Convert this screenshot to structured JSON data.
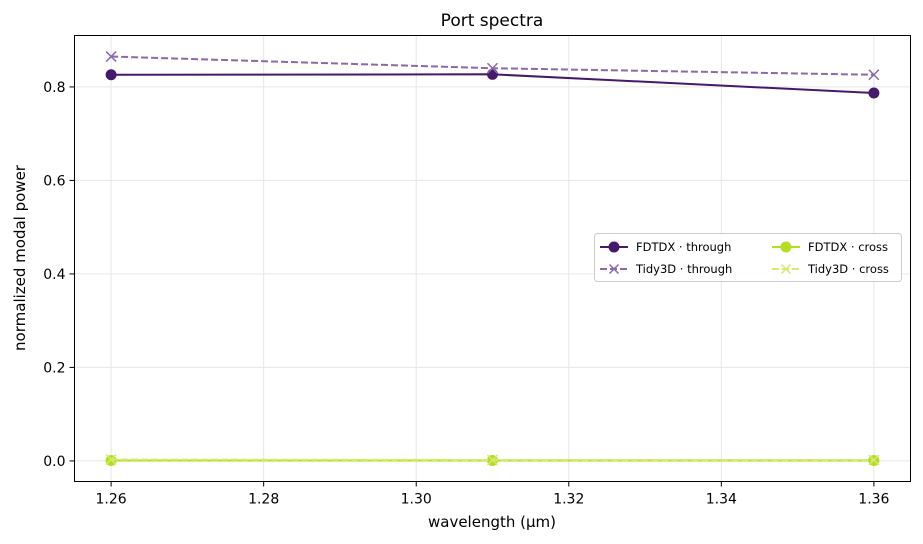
{
  "chart_data": {
    "type": "line",
    "title": "Port spectra",
    "xlabel": "wavelength (µm)",
    "ylabel": "normalized modal power",
    "xlim": [
      1.2552,
      1.3648
    ],
    "ylim": [
      -0.044,
      0.91
    ],
    "xticks": [
      1.26,
      1.28,
      1.3,
      1.32,
      1.34,
      1.36
    ],
    "xtick_labels": [
      "1.26",
      "1.28",
      "1.30",
      "1.32",
      "1.34",
      "1.36"
    ],
    "yticks": [
      0.0,
      0.2,
      0.4,
      0.6,
      0.8
    ],
    "ytick_labels": [
      "0.0",
      "0.2",
      "0.4",
      "0.6",
      "0.8"
    ],
    "grid": true,
    "legend_position": "center-right",
    "legend_columns": 2,
    "x": [
      1.26,
      1.31,
      1.36
    ],
    "series": [
      {
        "name": "FDTDX · through",
        "values": [
          0.826,
          0.827,
          0.787
        ],
        "color": "#45196b",
        "marker": "circle",
        "linestyle": "solid"
      },
      {
        "name": "Tidy3D · through",
        "values": [
          0.865,
          0.84,
          0.826
        ],
        "color": "#8a6aa8",
        "marker": "x",
        "linestyle": "dashed"
      },
      {
        "name": "FDTDX · cross",
        "values": [
          0.001,
          0.001,
          0.001
        ],
        "color": "#b5dd21",
        "marker": "circle",
        "linestyle": "solid"
      },
      {
        "name": "Tidy3D · cross",
        "values": [
          0.003,
          0.002,
          0.002
        ],
        "color": "#d2ec6c",
        "marker": "x",
        "linestyle": "dashed"
      }
    ]
  }
}
